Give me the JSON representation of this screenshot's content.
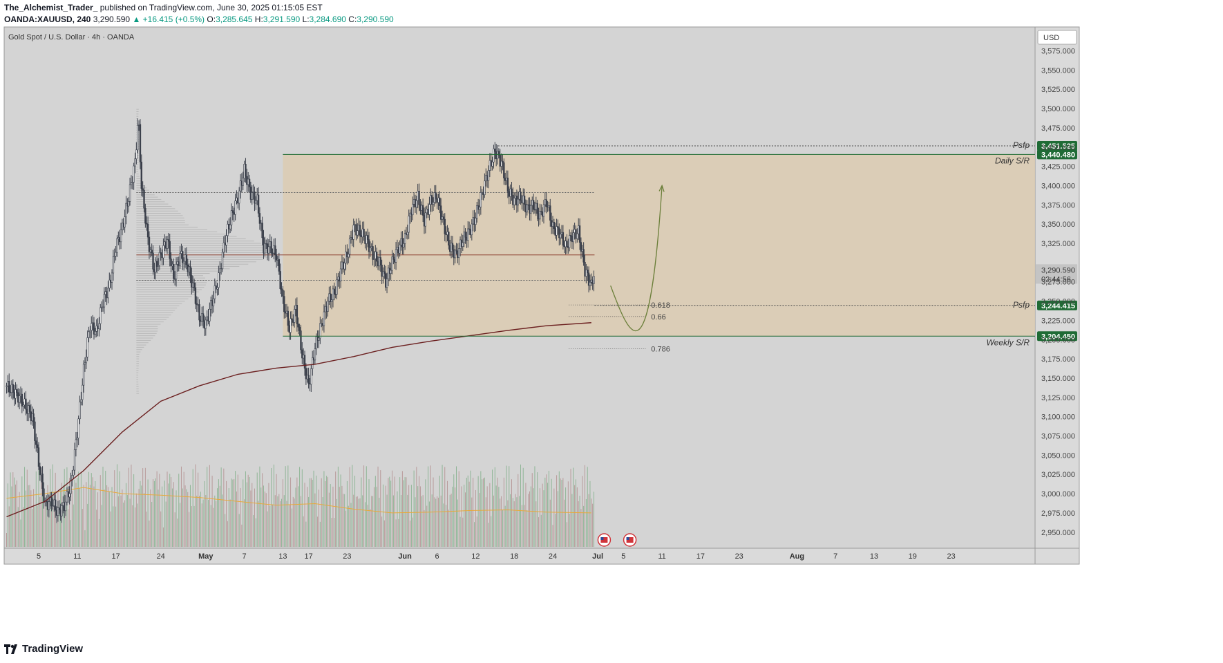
{
  "header": {
    "author": "The_Alchemist_Trader_",
    "published_text": "published on TradingView.com, June 30, 2025 01:15:05 EST",
    "symbol": "OANDA:XAUUSD, 240",
    "last": "3,290.590",
    "change": "▲ +16.415 (+0.5%)",
    "o_label": "O:",
    "o": "3,285.645",
    "h_label": "H:",
    "h": "3,291.590",
    "l_label": "L:",
    "l": "3,284.690",
    "c_label": "C:",
    "c": "3,290.590"
  },
  "footer": {
    "brand": "TradingView",
    "logo_icon": "tradingview-logo-icon"
  },
  "colors": {
    "pane_bg": "#d4d4d4",
    "zone": "#dccbb1",
    "candle": "#3a3f4a",
    "ma_line": "#6b1f1f",
    "volume_up": "#8fb596",
    "volume_down": "#b89a9a",
    "volume_ma": "#e8a93a",
    "arrow": "#6b7f3a",
    "level_green": "#1f6b35"
  },
  "chart_data": {
    "type": "candlestick",
    "title": "Gold Spot / U.S. Dollar · 4h · OANDA",
    "currency": "USD",
    "ylim": [
      2930,
      3590
    ],
    "y_ticks": [
      2950,
      2975,
      3000,
      3025,
      3050,
      3075,
      3100,
      3125,
      3150,
      3175,
      3200,
      3225,
      3250,
      3275,
      3300,
      3325,
      3350,
      3375,
      3400,
      3425,
      3450,
      3475,
      3500,
      3525,
      3550,
      3575
    ],
    "x_ticks": [
      {
        "label": "5",
        "day": 5
      },
      {
        "label": "11",
        "day": 11
      },
      {
        "label": "17",
        "day": 17
      },
      {
        "label": "24",
        "day": 24
      },
      {
        "label": "May",
        "day": 31
      },
      {
        "label": "7",
        "day": 37
      },
      {
        "label": "13",
        "day": 43
      },
      {
        "label": "17",
        "day": 47
      },
      {
        "label": "23",
        "day": 53
      },
      {
        "label": "Jun",
        "day": 62
      },
      {
        "label": "6",
        "day": 67
      },
      {
        "label": "12",
        "day": 73
      },
      {
        "label": "18",
        "day": 79
      },
      {
        "label": "24",
        "day": 85
      },
      {
        "label": "Jul",
        "day": 92
      },
      {
        "label": "5",
        "day": 96
      },
      {
        "label": "11",
        "day": 102
      },
      {
        "label": "17",
        "day": 108
      },
      {
        "label": "23",
        "day": 114
      },
      {
        "label": "Aug",
        "day": 123
      },
      {
        "label": "7",
        "day": 129
      },
      {
        "label": "13",
        "day": 135
      },
      {
        "label": "19",
        "day": 141
      },
      {
        "label": "23",
        "day": 147
      }
    ],
    "price_path": [
      [
        0,
        3140
      ],
      [
        2,
        3125
      ],
      [
        4,
        3100
      ],
      [
        5,
        3040
      ],
      [
        6,
        2985
      ],
      [
        7,
        2990
      ],
      [
        8,
        2975
      ],
      [
        9,
        2985
      ],
      [
        10,
        3010
      ],
      [
        11,
        3080
      ],
      [
        12,
        3160
      ],
      [
        13,
        3220
      ],
      [
        14,
        3210
      ],
      [
        15,
        3250
      ],
      [
        16,
        3270
      ],
      [
        17,
        3320
      ],
      [
        18,
        3345
      ],
      [
        19,
        3385
      ],
      [
        20,
        3430
      ],
      [
        20.5,
        3490
      ],
      [
        21,
        3400
      ],
      [
        22,
        3330
      ],
      [
        23,
        3290
      ],
      [
        24,
        3310
      ],
      [
        25,
        3330
      ],
      [
        26,
        3280
      ],
      [
        27,
        3310
      ],
      [
        28,
        3300
      ],
      [
        29,
        3270
      ],
      [
        30,
        3230
      ],
      [
        31,
        3220
      ],
      [
        32,
        3250
      ],
      [
        33,
        3280
      ],
      [
        34,
        3330
      ],
      [
        35,
        3360
      ],
      [
        36,
        3385
      ],
      [
        37,
        3420
      ],
      [
        38,
        3390
      ],
      [
        39,
        3380
      ],
      [
        40,
        3320
      ],
      [
        41,
        3320
      ],
      [
        42,
        3310
      ],
      [
        43,
        3250
      ],
      [
        44,
        3215
      ],
      [
        45,
        3240
      ],
      [
        46,
        3180
      ],
      [
        47,
        3140
      ],
      [
        48,
        3190
      ],
      [
        49,
        3220
      ],
      [
        50,
        3250
      ],
      [
        51,
        3260
      ],
      [
        52,
        3290
      ],
      [
        53,
        3310
      ],
      [
        54,
        3345
      ],
      [
        55,
        3340
      ],
      [
        56,
        3330
      ],
      [
        57,
        3310
      ],
      [
        58,
        3300
      ],
      [
        59,
        3275
      ],
      [
        60,
        3300
      ],
      [
        61,
        3320
      ],
      [
        62,
        3330
      ],
      [
        63,
        3370
      ],
      [
        64,
        3385
      ],
      [
        65,
        3355
      ],
      [
        66,
        3380
      ],
      [
        67,
        3385
      ],
      [
        68,
        3350
      ],
      [
        69,
        3320
      ],
      [
        70,
        3310
      ],
      [
        71,
        3330
      ],
      [
        72,
        3340
      ],
      [
        73,
        3360
      ],
      [
        74,
        3390
      ],
      [
        75,
        3420
      ],
      [
        76,
        3445
      ],
      [
        77,
        3430
      ],
      [
        78,
        3395
      ],
      [
        79,
        3380
      ],
      [
        80,
        3385
      ],
      [
        81,
        3370
      ],
      [
        82,
        3375
      ],
      [
        83,
        3360
      ],
      [
        84,
        3380
      ],
      [
        85,
        3345
      ],
      [
        86,
        3340
      ],
      [
        87,
        3320
      ],
      [
        88,
        3335
      ],
      [
        89,
        3340
      ],
      [
        90,
        3290
      ],
      [
        91,
        3270
      ],
      [
        91.5,
        3290
      ]
    ],
    "series": [
      {
        "values": [
          [
            0,
            2970
          ],
          [
            6,
            2990
          ],
          [
            12,
            3030
          ],
          [
            18,
            3080
          ],
          [
            24,
            3120
          ],
          [
            30,
            3140
          ],
          [
            36,
            3155
          ],
          [
            42,
            3163
          ],
          [
            48,
            3168
          ],
          [
            54,
            3178
          ],
          [
            60,
            3190
          ],
          [
            66,
            3198
          ],
          [
            72,
            3205
          ],
          [
            78,
            3212
          ],
          [
            84,
            3218
          ],
          [
            91,
            3222
          ]
        ]
      }
    ],
    "volume_ma": [
      [
        0,
        2994
      ],
      [
        6,
        3000
      ],
      [
        12,
        3008
      ],
      [
        18,
        3000
      ],
      [
        24,
        2998
      ],
      [
        30,
        2995
      ],
      [
        36,
        2990
      ],
      [
        42,
        2985
      ],
      [
        48,
        2987
      ],
      [
        54,
        2980
      ],
      [
        60,
        2975
      ],
      [
        66,
        2976
      ],
      [
        72,
        2978
      ],
      [
        78,
        2979
      ],
      [
        84,
        2976
      ],
      [
        91,
        2975
      ]
    ],
    "zone": {
      "y_top": 3440.48,
      "y_bottom": 3204.45,
      "x_start_day": 43
    },
    "levels": [
      {
        "price": 3451.525,
        "label": "3,451.525",
        "style": "dotted",
        "text": "Psfp"
      },
      {
        "price": 3440.48,
        "label": "3,440.480",
        "style": "solid",
        "text": "Daily S/R"
      },
      {
        "price": 3244.415,
        "label": "3,244.415",
        "style": "dotted",
        "text": "Psfp"
      },
      {
        "price": 3204.45,
        "label": "3,204.450",
        "style": "solid",
        "text": "Weekly S/R"
      }
    ],
    "current_price": {
      "price": 3290.59,
      "label": "3,290.590",
      "countdown": "02:44:56"
    },
    "fib_levels": [
      {
        "ratio": "0.618",
        "price": 3245
      },
      {
        "ratio": "0.66",
        "price": 3230
      },
      {
        "ratio": "0.786",
        "price": 3188
      }
    ],
    "range_lines": [
      3391,
      3310,
      3277
    ],
    "projection": [
      [
        94,
        3270
      ],
      [
        97,
        3220
      ],
      [
        100,
        3250
      ],
      [
        102,
        3400
      ]
    ],
    "events": [
      {
        "day": 93,
        "icon": "us-flag-icon"
      },
      {
        "day": 97,
        "icon": "us-flag-icon"
      }
    ]
  }
}
